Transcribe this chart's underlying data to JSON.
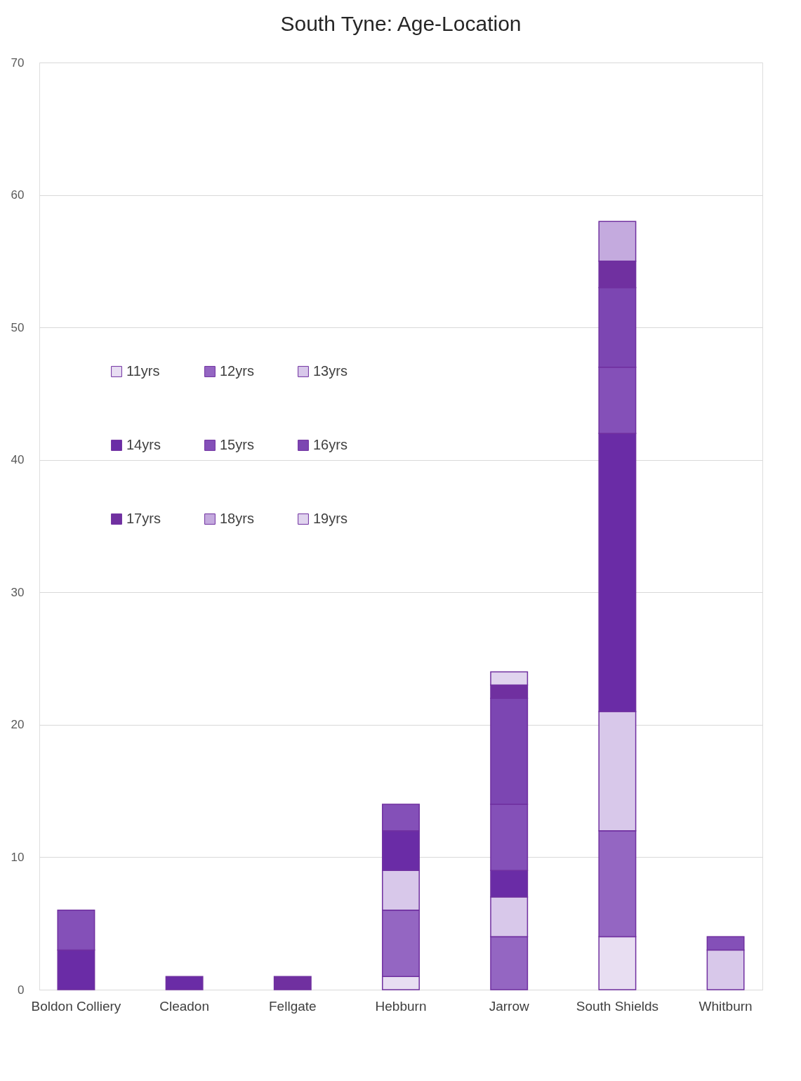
{
  "chart_data": {
    "type": "bar",
    "title": "South Tyne: Age-Location",
    "stacked": true,
    "categories": [
      "Boldon Colliery",
      "Cleadon",
      "Fellgate",
      "Hebburn",
      "Jarrow",
      "South Shields",
      "Whitburn"
    ],
    "series": [
      {
        "name": "11yrs",
        "color": "#e8def2",
        "values": [
          null,
          null,
          null,
          1,
          null,
          4,
          null
        ]
      },
      {
        "name": "12yrs",
        "color": "#9466c2",
        "values": [
          null,
          null,
          null,
          5,
          4,
          8,
          null
        ]
      },
      {
        "name": "13yrs",
        "color": "#d8c8ea",
        "values": [
          null,
          null,
          null,
          3,
          3,
          9,
          3
        ]
      },
      {
        "name": "14yrs",
        "color": "#6a2ca6",
        "values": [
          3,
          1,
          null,
          3,
          2,
          21,
          null
        ]
      },
      {
        "name": "15yrs",
        "color": "#8450b8",
        "values": [
          3,
          null,
          null,
          2,
          5,
          5,
          1
        ]
      },
      {
        "name": "16yrs",
        "color": "#7c46b2",
        "values": [
          null,
          null,
          null,
          null,
          8,
          6,
          null
        ]
      },
      {
        "name": "17yrs",
        "color": "#7030a0",
        "values": [
          null,
          null,
          1,
          null,
          1,
          2,
          null
        ]
      },
      {
        "name": "18yrs",
        "color": "#c4aade",
        "values": [
          null,
          null,
          null,
          null,
          null,
          3,
          null
        ]
      },
      {
        "name": "19yrs",
        "color": "#e0d4ee",
        "values": [
          null,
          null,
          null,
          null,
          1,
          null,
          null
        ]
      }
    ],
    "ylim": [
      0,
      70
    ],
    "yticks": [
      0,
      10,
      20,
      30,
      40,
      50,
      60,
      70
    ],
    "grid": "y",
    "legend": "top left"
  }
}
